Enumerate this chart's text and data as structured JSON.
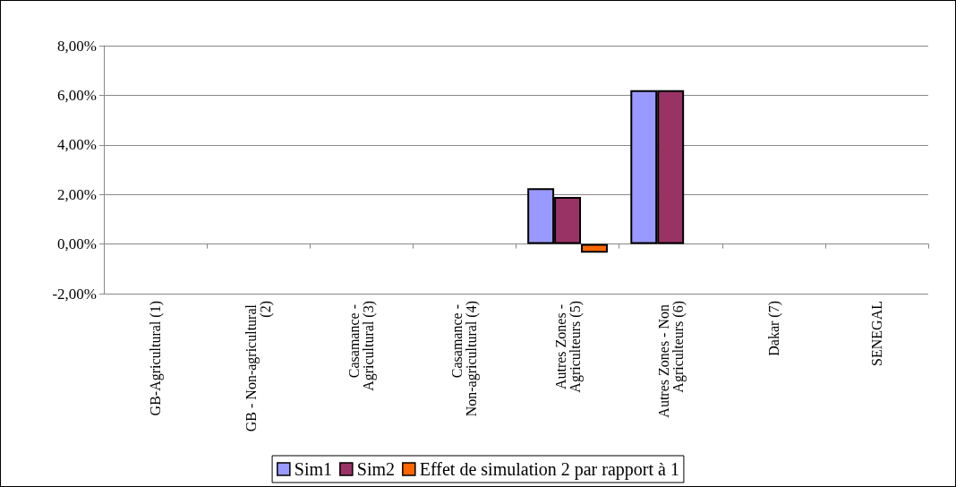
{
  "chart_data": {
    "type": "bar",
    "categories": [
      "GB-Agricultural (1)",
      "GB - Non-agricultural (2)",
      "Casamance - Agricultural (3)",
      "Casamance - Non-agricultural (4)",
      "Autres Zones - Agriculteurs (5)",
      "Autres Zones - Non Agriculteurs (6)",
      "Dakar (7)",
      "SENEGAL"
    ],
    "series": [
      {
        "name": "Sim1",
        "color": "#9999ff",
        "values": [
          null,
          null,
          null,
          null,
          2.25,
          6.2,
          null,
          null
        ]
      },
      {
        "name": "Sim2",
        "color": "#993366",
        "values": [
          null,
          null,
          null,
          null,
          1.9,
          6.2,
          null,
          null
        ]
      },
      {
        "name": "Effet de simulation 2 par rapport à 1",
        "color": "#ff6600",
        "values": [
          null,
          null,
          null,
          null,
          -0.35,
          null,
          null,
          null
        ]
      }
    ],
    "ylim": [
      -2,
      8
    ],
    "yticks": [
      {
        "value": -2,
        "label": "-2,00%"
      },
      {
        "value": 0,
        "label": "0,00%"
      },
      {
        "value": 2,
        "label": "2,00%"
      },
      {
        "value": 4,
        "label": "4,00%"
      },
      {
        "value": 6,
        "label": "6,00%"
      },
      {
        "value": 8,
        "label": "8,00%"
      }
    ],
    "grid": "y",
    "legend": "bottom"
  }
}
